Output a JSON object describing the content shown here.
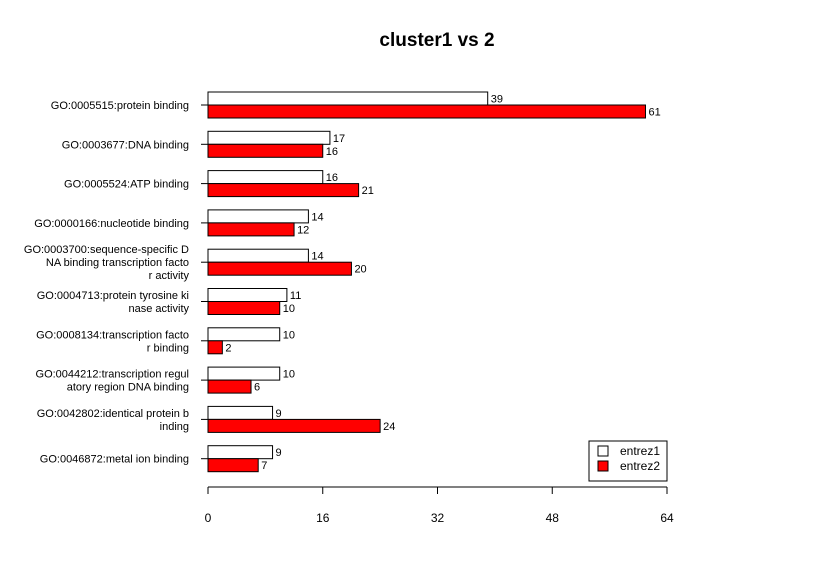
{
  "chart_data": {
    "type": "bar",
    "orientation": "horizontal",
    "title": "cluster1 vs 2",
    "xlabel": "",
    "ylabel": "",
    "xlim": [
      0,
      64
    ],
    "xticks": [
      0,
      16,
      32,
      48,
      64
    ],
    "grid": false,
    "legend_position": "bottom-right",
    "categories": [
      [
        "GO:0005515:protein binding"
      ],
      [
        "GO:0003677:DNA binding"
      ],
      [
        "GO:0005524:ATP binding"
      ],
      [
        "GO:0000166:nucleotide binding"
      ],
      [
        "GO:0003700:sequence-specific D",
        "NA binding transcription facto",
        "r activity"
      ],
      [
        "GO:0004713:protein tyrosine ki",
        "nase activity"
      ],
      [
        "GO:0008134:transcription facto",
        "r binding"
      ],
      [
        "GO:0044212:transcription regul",
        "atory region DNA binding"
      ],
      [
        "GO:0042802:identical protein b",
        "inding"
      ],
      [
        "GO:0046872:metal ion binding"
      ]
    ],
    "series": [
      {
        "name": "entrez1",
        "color": "#ffffff",
        "values": [
          39,
          17,
          16,
          14,
          14,
          11,
          10,
          10,
          9,
          9
        ]
      },
      {
        "name": "entrez2",
        "color": "#ff0000",
        "values": [
          61,
          16,
          21,
          12,
          20,
          10,
          2,
          6,
          24,
          7
        ]
      }
    ]
  }
}
